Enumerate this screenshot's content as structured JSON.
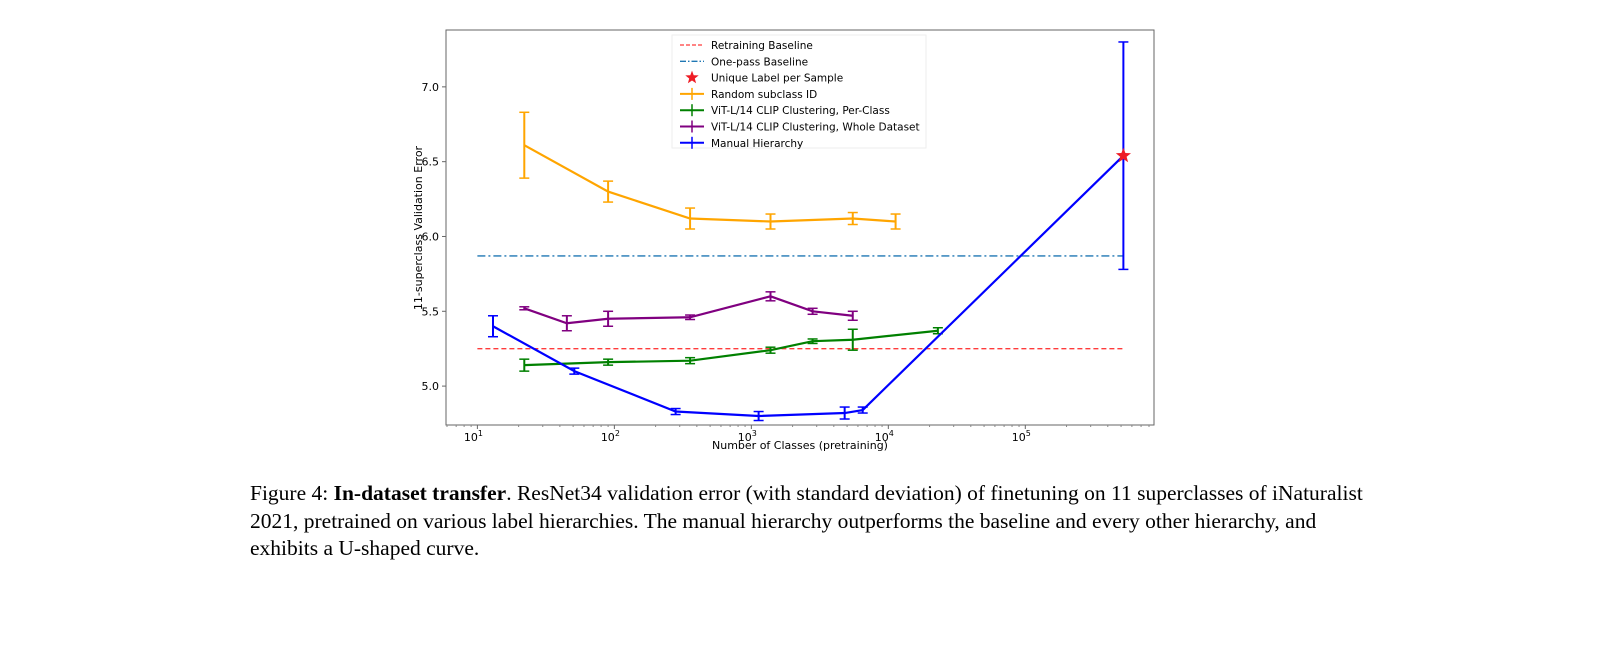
{
  "chart_data": {
    "type": "line",
    "xlabel": "Number of Classes (pretraining)",
    "ylabel": "11-superclass Validation Error",
    "xscale": "log",
    "xlim": [
      5.9,
      870000
    ],
    "ylim": [
      4.74,
      7.38
    ],
    "xticks": [
      10,
      100,
      1000,
      10000,
      100000
    ],
    "xtick_labels": [
      "10",
      "10",
      "10",
      "10",
      "10"
    ],
    "xtick_exponents": [
      "1",
      "2",
      "3",
      "4",
      "5"
    ],
    "yticks": [
      5.0,
      5.5,
      6.0,
      6.5,
      7.0
    ],
    "ytick_labels": [
      "5.0",
      "5.5",
      "6.0",
      "6.5",
      "7.0"
    ],
    "grid": false,
    "legend_placement": "top-center",
    "baselines": [
      {
        "name": "Retraining Baseline",
        "y": 5.25,
        "x_range": [
          10,
          520000
        ],
        "color": "#ff3b3b",
        "style": "dashed"
      },
      {
        "name": "One-pass Baseline",
        "y": 5.87,
        "x_range": [
          10,
          520000
        ],
        "color": "#1f77b4",
        "style": "dashdot"
      }
    ],
    "markers": [
      {
        "name": "Unique Label per Sample",
        "x": 520000,
        "y": 6.54,
        "color": "#ee1c25",
        "shape": "star"
      }
    ],
    "series": [
      {
        "name": "Random subclass ID",
        "color": "#ffa500",
        "x": [
          22,
          90,
          357,
          1380,
          5500,
          11300
        ],
        "y": [
          6.61,
          6.3,
          6.12,
          6.1,
          6.12,
          6.1
        ],
        "err": [
          0.22,
          0.07,
          0.07,
          0.05,
          0.04,
          0.05
        ]
      },
      {
        "name": "ViT-L/14 CLIP Clustering, Per-Class",
        "color": "#008000",
        "x": [
          22,
          90,
          357,
          1380,
          2800,
          5500,
          23000
        ],
        "y": [
          5.14,
          5.16,
          5.17,
          5.24,
          5.3,
          5.31,
          5.37
        ],
        "err": [
          0.04,
          0.02,
          0.02,
          0.02,
          0.015,
          0.07,
          0.02
        ]
      },
      {
        "name": "ViT-L/14 CLIP Clustering, Whole Dataset",
        "color": "#800080",
        "x": [
          22,
          45,
          90,
          357,
          1380,
          2800,
          5500
        ],
        "y": [
          5.52,
          5.42,
          5.45,
          5.46,
          5.6,
          5.5,
          5.47
        ],
        "err": [
          0.01,
          0.05,
          0.05,
          0.015,
          0.03,
          0.02,
          0.03
        ]
      },
      {
        "name": "Manual Hierarchy",
        "color": "#0000ff",
        "x": [
          13,
          51,
          280,
          1130,
          4800,
          6500,
          520000
        ],
        "y": [
          5.4,
          5.1,
          4.83,
          4.8,
          4.82,
          4.84,
          6.54
        ],
        "err": [
          0.07,
          0.02,
          0.02,
          0.03,
          0.04,
          0.02,
          0.76
        ]
      }
    ]
  },
  "caption": {
    "prefix": "Figure 4: ",
    "bold": "In-dataset transfer",
    "text": ". ResNet34 validation error (with standard deviation) of finetuning on 11 superclasses of iNaturalist 2021, pretrained on various label hierarchies. The manual hierarchy outperforms the baseline and every other hierarchy, and exhibits a U-shaped curve."
  }
}
